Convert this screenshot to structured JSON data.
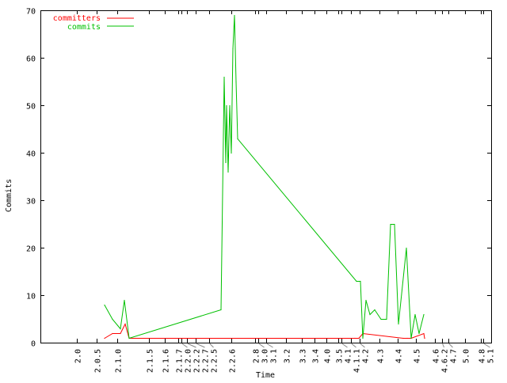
{
  "chart_data": {
    "type": "line",
    "title": "",
    "xlabel": "Time",
    "ylabel": "Commits",
    "ylim": [
      0,
      70
    ],
    "yticks": [
      0,
      10,
      20,
      30,
      40,
      50,
      60,
      70
    ],
    "grid": false,
    "legend_position": "top-left",
    "xtick_labels": [
      "2.0",
      "2.0.5",
      "2.1.0",
      "2.1.5",
      "2.1.6",
      "2.1.7",
      "2.2.0",
      "2.2.2",
      "2.2.7",
      "2.2.5",
      "2.2.6",
      "2.8",
      "3.0",
      "3.1",
      "3.2",
      "3.3",
      "3.4",
      "4.0",
      "3.5",
      "4.1",
      "4.1.1",
      "4.2",
      "4.3",
      "4.4",
      "4.5",
      "4.6",
      "4.6.2",
      "4.7",
      "5.0",
      "4.8",
      "5.1"
    ],
    "series": [
      {
        "name": "committers",
        "color": "#ff0000",
        "values": [
          1,
          2,
          2,
          4,
          1,
          1,
          1,
          2,
          1,
          1,
          1,
          2,
          1,
          1
        ]
      },
      {
        "name": "commits",
        "color": "#00c000",
        "values": [
          8,
          5,
          3,
          9,
          1,
          7,
          56,
          38,
          50,
          36,
          50,
          40,
          62,
          69,
          55,
          43,
          13,
          13,
          1,
          9,
          6,
          7,
          5,
          5,
          25,
          25,
          4,
          20,
          1,
          6,
          2,
          6
        ]
      }
    ]
  }
}
